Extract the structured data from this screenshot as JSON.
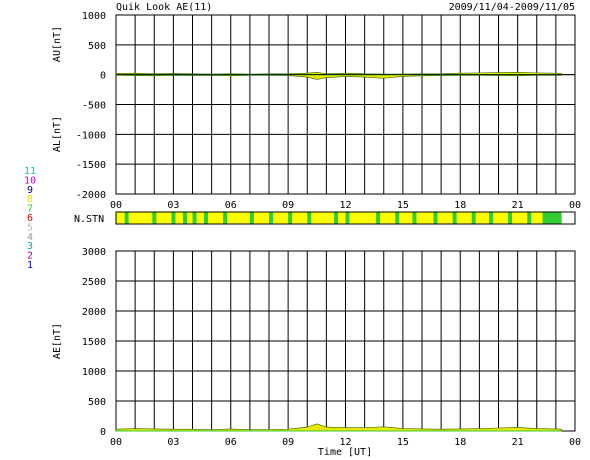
{
  "header": {
    "title": "Quik Look AE(11)",
    "date_range": "2009/11/04-2009/11/05"
  },
  "station_legend": {
    "items": [
      {
        "label": "11",
        "color": "#00cccc"
      },
      {
        "label": "10",
        "color": "#cc00cc"
      },
      {
        "label": "9",
        "color": "#0000aa"
      },
      {
        "label": "8",
        "color": "#e8e800"
      },
      {
        "label": "7",
        "color": "#33cc33"
      },
      {
        "label": "6",
        "color": "#dd0000"
      },
      {
        "label": "5",
        "color": "#bbbbbb"
      },
      {
        "label": "4",
        "color": "#999999"
      },
      {
        "label": "3",
        "color": "#00aaaa"
      },
      {
        "label": "2",
        "color": "#aa00aa"
      },
      {
        "label": "1",
        "color": "#0000cc"
      }
    ]
  },
  "chart_data": [
    {
      "type": "area",
      "name": "AU/AL panel",
      "ylabel_top": "AU[nT]",
      "ylabel_bottom": "AL[nT]",
      "xlim": [
        0,
        24
      ],
      "ylim": [
        -2000,
        1000
      ],
      "y_ticks": [
        "1000",
        "500",
        "0",
        "-500",
        "-1000",
        "-1500",
        "-2000"
      ],
      "x_tick_labels": [
        "00",
        "03",
        "06",
        "09",
        "12",
        "15",
        "18",
        "21",
        "00"
      ],
      "grid": true,
      "data_end_hour": 23.3,
      "series": [
        {
          "name": "AU",
          "color": "#e8e800",
          "x": [
            0,
            1,
            2,
            3,
            4,
            5,
            6,
            7,
            8,
            9,
            10,
            10.5,
            11,
            12,
            13,
            14,
            15,
            16,
            17,
            18,
            19,
            20,
            21,
            22,
            23,
            23.3
          ],
          "values": [
            20,
            25,
            15,
            20,
            15,
            10,
            15,
            10,
            15,
            15,
            25,
            40,
            15,
            25,
            15,
            10,
            10,
            15,
            15,
            25,
            30,
            35,
            40,
            30,
            25,
            20
          ]
        },
        {
          "name": "AL",
          "color": "#e8e800",
          "x": [
            0,
            1,
            2,
            3,
            4,
            5,
            6,
            7,
            8,
            9,
            10,
            10.5,
            11,
            12,
            13,
            14,
            15,
            16,
            17,
            18,
            19,
            20,
            21,
            22,
            23,
            23.3
          ],
          "values": [
            -10,
            -15,
            -20,
            -10,
            -15,
            -10,
            -20,
            -10,
            -10,
            -15,
            -40,
            -80,
            -50,
            -30,
            -40,
            -60,
            -30,
            -20,
            -15,
            -10,
            -10,
            -15,
            -20,
            -10,
            -10,
            -10
          ]
        }
      ]
    },
    {
      "type": "heatmap",
      "name": "N.STN",
      "label": "N.STN",
      "xlim": [
        0,
        24
      ],
      "base_color": "#ffff00",
      "mark_color": "#33cc33",
      "marks": [
        0.45,
        1.9,
        2.9,
        3.5,
        4.0,
        4.6,
        5.6,
        7.0,
        8.0,
        9.0,
        10.0,
        11.4,
        12.0,
        13.6,
        14.6,
        15.5,
        16.6,
        17.6,
        18.6,
        19.5,
        20.5,
        21.5
      ],
      "solid_from": 22.3,
      "solid_to": 23.3
    },
    {
      "type": "area",
      "name": "AE panel",
      "ylabel": "AE[nT]",
      "xlabel": "Time [UT]",
      "xlim": [
        0,
        24
      ],
      "ylim": [
        0,
        3000
      ],
      "y_ticks": [
        "3000",
        "2500",
        "2000",
        "1500",
        "1000",
        "500",
        "0"
      ],
      "x_tick_labels": [
        "00",
        "03",
        "06",
        "09",
        "12",
        "15",
        "18",
        "21",
        "00"
      ],
      "grid": true,
      "data_end_hour": 23.3,
      "series": [
        {
          "name": "AE",
          "color": "#e8e800",
          "x": [
            0,
            1,
            2,
            3,
            4,
            5,
            6,
            7,
            8,
            9,
            10,
            10.5,
            11,
            12,
            13,
            14,
            15,
            16,
            17,
            18,
            19,
            20,
            21,
            22,
            23,
            23.3
          ],
          "values": [
            30,
            40,
            35,
            30,
            30,
            20,
            35,
            20,
            25,
            30,
            65,
            120,
            65,
            55,
            55,
            70,
            40,
            35,
            30,
            35,
            40,
            50,
            60,
            40,
            35,
            30
          ]
        }
      ]
    }
  ]
}
